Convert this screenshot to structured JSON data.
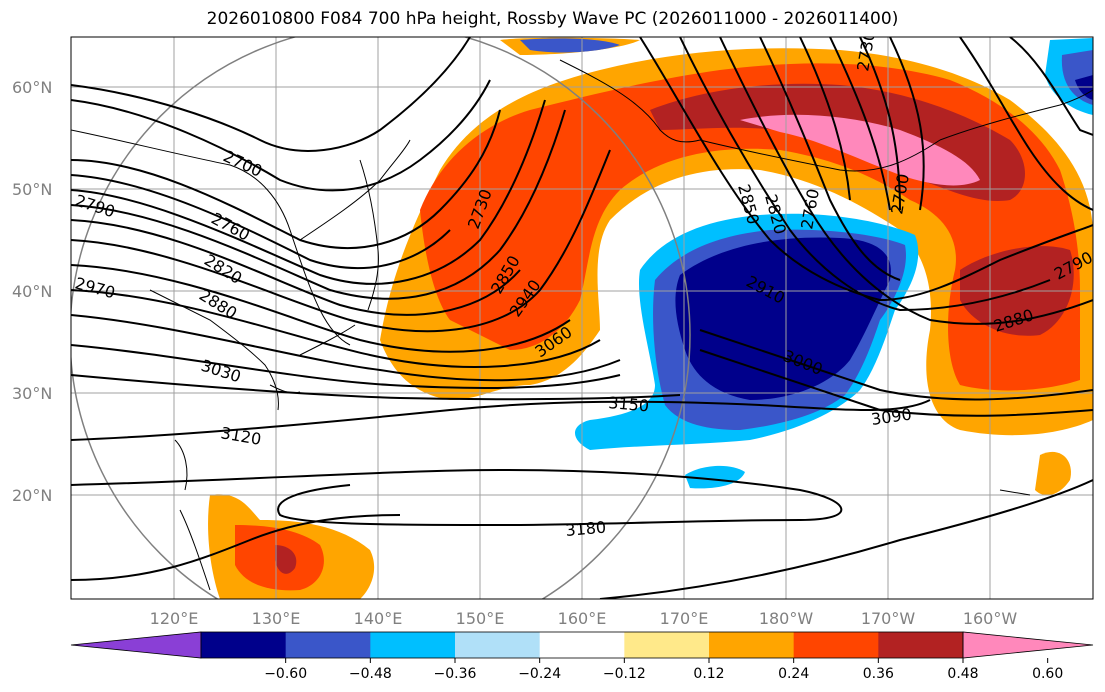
{
  "title": "2026010800 F084 700 hPa height, Rossby Wave PC (2026011000 - 2026011400)",
  "lat_labels": [
    "60°N",
    "50°N",
    "40°N",
    "30°N",
    "20°N"
  ],
  "lon_labels": [
    "120°E",
    "130°E",
    "140°E",
    "150°E",
    "160°E",
    "170°E",
    "180°W",
    "170°W",
    "160°W"
  ],
  "contour_labels": [
    "2700",
    "2790",
    "2760",
    "2820",
    "2970",
    "2880",
    "3030",
    "3120",
    "2730",
    "2850",
    "2940",
    "3060",
    "3150",
    "3180",
    "2850",
    "2820",
    "2760",
    "2700",
    "2730",
    "2910",
    "3000",
    "3090",
    "2880",
    "2790"
  ],
  "colorbar": {
    "ticks": [
      "−0.60",
      "−0.48",
      "−0.36",
      "−0.24",
      "−0.12",
      "0.12",
      "0.24",
      "0.36",
      "0.48",
      "0.60"
    ],
    "colors": [
      "#8a3fd6",
      "#00008b",
      "#3a56c9",
      "#00bfff",
      "#b0e0f8",
      "#ffffff",
      "#ffe98a",
      "#ffa500",
      "#ff4500",
      "#b22222",
      "#ff88bb"
    ]
  }
}
